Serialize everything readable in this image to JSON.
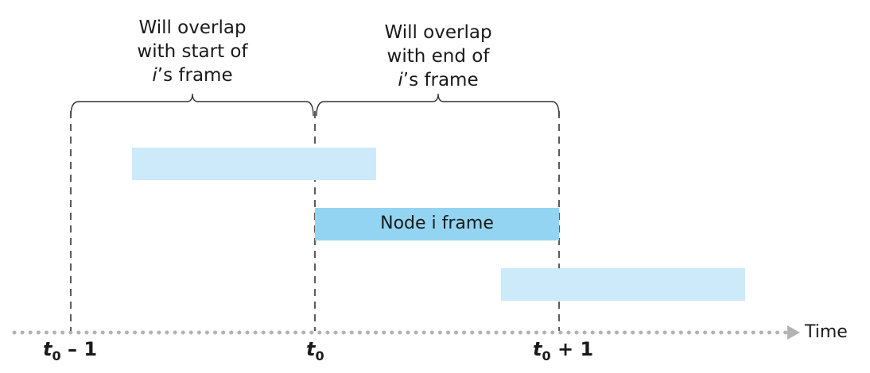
{
  "captions": {
    "left": {
      "line1": "Will overlap",
      "line2": "with start of",
      "line3_var": "i",
      "line3_rest": "’s frame"
    },
    "right": {
      "line1": "Will overlap",
      "line2": "with end of",
      "line3_var": "i",
      "line3_rest": "’s frame"
    }
  },
  "frames": {
    "node_label": "Node i frame"
  },
  "axis": {
    "label": "Time",
    "ticks": [
      {
        "sym": "t",
        "sub": "0",
        "rest": " – 1"
      },
      {
        "sym": "t",
        "sub": "0",
        "rest": ""
      },
      {
        "sym": "t",
        "sub": "0",
        "rest": " + 1"
      }
    ]
  },
  "colors": {
    "light_frame": "#cdeafa",
    "node_frame": "#93d4f2",
    "axis_dots": "#b3b3b3",
    "lines": "#333333"
  }
}
